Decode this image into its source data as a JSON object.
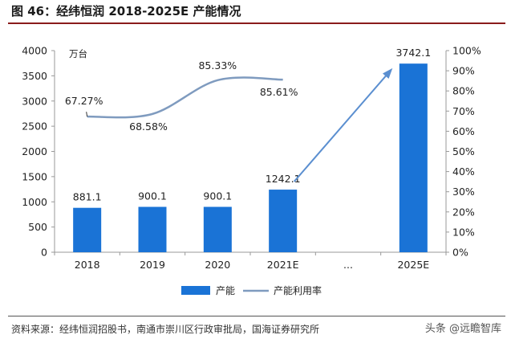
{
  "figure": {
    "title": "图 46：经纬恒润 2018-2025E 产能情况",
    "source": "资料来源：经纬恒润招股书，南通市崇川区行政审批局，国海证券研究所",
    "watermark": "头条 @远瞻智库"
  },
  "chart_data": {
    "type": "bar",
    "categories": [
      "2018",
      "2019",
      "2020",
      "2021E",
      "...",
      "2025E"
    ],
    "series": [
      {
        "name": "产能",
        "type": "bar",
        "axis": "left",
        "color": "#1a73d6",
        "values": [
          881.1,
          900.1,
          900.1,
          1242.1,
          null,
          3742.1
        ],
        "labels": [
          "881.1",
          "900.1",
          "900.1",
          "1242.1",
          "",
          "3742.1"
        ]
      },
      {
        "name": "产能利用率",
        "type": "line",
        "axis": "right",
        "color": "#7f9bbf",
        "values": [
          0.6727,
          0.6858,
          0.8533,
          0.8561,
          null,
          null
        ],
        "labels": [
          "67.27%",
          "68.58%",
          "85.33%",
          "85.61%",
          "",
          ""
        ]
      }
    ],
    "left_axis": {
      "unit": "万台",
      "min": 0,
      "max": 4000,
      "step": 500,
      "ticks": [
        "0",
        "500",
        "1000",
        "1500",
        "2000",
        "2500",
        "3000",
        "3500",
        "4000"
      ]
    },
    "right_axis": {
      "min": 0,
      "max": 1,
      "step": 0.1,
      "ticks": [
        "0%",
        "10%",
        "20%",
        "30%",
        "40%",
        "50%",
        "60%",
        "70%",
        "80%",
        "90%",
        "100%"
      ]
    },
    "annotation": {
      "type": "arrow",
      "from_category": "2021E",
      "to_category": "2025E",
      "color": "#5b8fd0"
    },
    "legend": {
      "position": "bottom",
      "items": [
        "产能",
        "产能利用率"
      ]
    }
  }
}
